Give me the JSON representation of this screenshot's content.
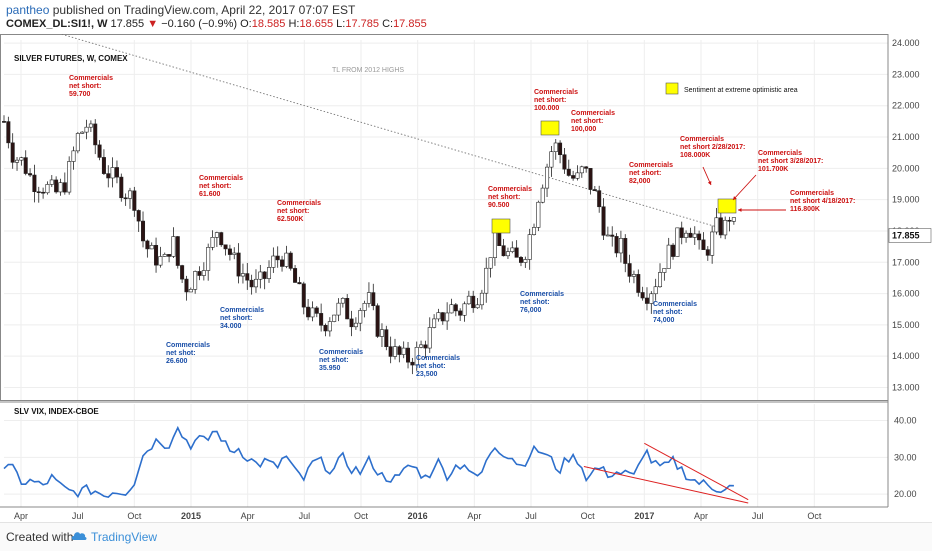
{
  "header": {
    "user": "pantheo",
    "published": "published on TradingView.com, April 22, 2017 07:07 EST",
    "symbol": "COMEX_DL:SI1!, W",
    "last": "17.855",
    "change": "−0.160 (−0.9%)",
    "o_label": "O:",
    "o_value": "18.585",
    "h_label": "H:",
    "h_value": "18.655",
    "l_label": "L:",
    "l_value": "17.785",
    "c_label": "C:",
    "c_value": "17.855"
  },
  "footer": {
    "created_with": "Created with",
    "brand": "TradingView"
  },
  "colors": {
    "up": "#ffffff",
    "down": "#2b1313",
    "wick": "#222222",
    "annot_red": "#cc1111",
    "annot_blue": "#1a4fa8",
    "vix_line": "#2d6fcc",
    "trend_red": "#dd2222",
    "highlight": "#ffff00",
    "grid": "#eeeeee"
  },
  "chart_data": [
    {
      "type": "candlestick",
      "title": "SILVER FUTURES, W, COMEX",
      "ylim": [
        12.6,
        24.1
      ],
      "y_ticks": [
        "13.000",
        "14.000",
        "15.000",
        "16.000",
        "17.000",
        "18.000",
        "19.000",
        "20.000",
        "21.000",
        "22.000",
        "23.000",
        "24.000"
      ],
      "y_tick_values": [
        13,
        14,
        15,
        16,
        17,
        18,
        19,
        20,
        21,
        22,
        23,
        24
      ],
      "last_price_label": "17.855",
      "last_price": 17.855,
      "x_ticks": [
        "Apr",
        "Jul",
        "Oct",
        "2015",
        "Apr",
        "Jul",
        "Oct",
        "2016",
        "Apr",
        "Jul",
        "Oct",
        "2017",
        "Apr",
        "Jul",
        "Oct"
      ],
      "x_tick_months": [
        3,
        6,
        9,
        12,
        15,
        18,
        21,
        24,
        27,
        30,
        33,
        36,
        39,
        42,
        45
      ],
      "x_range_months": [
        2.1,
        48.9
      ],
      "trendline_label": "TL FROM 2012 HIGHS",
      "trendline": [
        [
          0.0,
          25.2
        ],
        [
          40.0,
          18.1
        ]
      ],
      "legend_text": "Sentiment at extreme optimistic area",
      "anchors": [
        [
          2.1,
          21.5
        ],
        [
          2.6,
          20.4
        ],
        [
          3.1,
          20.2
        ],
        [
          3.6,
          19.6
        ],
        [
          4.3,
          19.4
        ],
        [
          4.9,
          19.2
        ],
        [
          5.4,
          19.6
        ],
        [
          6.0,
          21.0
        ],
        [
          6.5,
          21.4
        ],
        [
          6.9,
          20.8
        ],
        [
          7.4,
          20.0
        ],
        [
          8.0,
          19.6
        ],
        [
          8.6,
          19.2
        ],
        [
          9.0,
          19.0
        ],
        [
          9.5,
          17.6
        ],
        [
          10.0,
          17.2
        ],
        [
          10.6,
          17.0
        ],
        [
          11.0,
          17.8
        ],
        [
          11.4,
          16.6
        ],
        [
          11.8,
          16.2
        ],
        [
          12.2,
          16.6
        ],
        [
          12.6,
          17.0
        ],
        [
          13.0,
          17.4
        ],
        [
          13.4,
          18.1
        ],
        [
          13.8,
          17.6
        ],
        [
          14.3,
          17.0
        ],
        [
          14.8,
          16.6
        ],
        [
          15.3,
          16.2
        ],
        [
          15.8,
          16.4
        ],
        [
          16.3,
          17.0
        ],
        [
          16.8,
          17.2
        ],
        [
          17.2,
          16.8
        ],
        [
          17.6,
          16.2
        ],
        [
          18.0,
          15.6
        ],
        [
          18.5,
          15.2
        ],
        [
          19.0,
          15.0
        ],
        [
          19.5,
          15.4
        ],
        [
          20.0,
          15.6
        ],
        [
          20.5,
          15.2
        ],
        [
          21.0,
          15.6
        ],
        [
          21.4,
          15.8
        ],
        [
          21.8,
          15.0
        ],
        [
          22.2,
          14.6
        ],
        [
          22.6,
          14.2
        ],
        [
          23.0,
          14.0
        ],
        [
          23.4,
          13.9
        ],
        [
          23.8,
          14.0
        ],
        [
          24.2,
          14.3
        ],
        [
          24.7,
          14.8
        ],
        [
          25.2,
          15.2
        ],
        [
          25.7,
          15.6
        ],
        [
          26.2,
          15.4
        ],
        [
          26.7,
          15.8
        ],
        [
          27.2,
          16.0
        ],
        [
          27.6,
          16.6
        ],
        [
          28.0,
          17.8
        ],
        [
          28.4,
          17.4
        ],
        [
          28.9,
          17.2
        ],
        [
          29.3,
          17.0
        ],
        [
          29.7,
          17.4
        ],
        [
          30.1,
          18.2
        ],
        [
          30.4,
          19.2
        ],
        [
          30.8,
          20.0
        ],
        [
          31.2,
          20.8
        ],
        [
          31.6,
          20.4
        ],
        [
          32.0,
          19.8
        ],
        [
          32.4,
          19.6
        ],
        [
          32.8,
          20.0
        ],
        [
          33.2,
          19.4
        ],
        [
          33.6,
          18.8
        ],
        [
          34.0,
          17.8
        ],
        [
          34.4,
          17.4
        ],
        [
          34.7,
          17.6
        ],
        [
          35.0,
          17.0
        ],
        [
          35.4,
          16.6
        ],
        [
          35.8,
          16.2
        ],
        [
          36.2,
          16.0
        ],
        [
          36.6,
          16.4
        ],
        [
          37.0,
          17.0
        ],
        [
          37.4,
          17.4
        ],
        [
          37.8,
          17.8
        ],
        [
          38.2,
          18.2
        ],
        [
          38.6,
          18.0
        ],
        [
          39.0,
          17.2
        ],
        [
          39.3,
          17.4
        ],
        [
          39.6,
          17.8
        ],
        [
          39.9,
          18.2
        ],
        [
          40.2,
          18.0
        ],
        [
          40.5,
          18.5
        ],
        [
          40.9,
          17.855
        ]
      ],
      "annotations": [
        {
          "lines": [
            "Commercials",
            "net short:",
            "59.700"
          ],
          "color": "red"
        },
        {
          "lines": [
            "Commercials",
            "net short:",
            "61.600"
          ],
          "color": "red"
        },
        {
          "lines": [
            "Commercials",
            "net short:",
            "62.500K"
          ],
          "color": "red"
        },
        {
          "lines": [
            "Commercials",
            "net short:",
            "90.500"
          ],
          "color": "red"
        },
        {
          "lines": [
            "Commercials",
            "net short:",
            "100.000"
          ],
          "color": "red"
        },
        {
          "lines": [
            "Commercials",
            "net short:",
            "100,000"
          ],
          "color": "red"
        },
        {
          "lines": [
            "Commercials",
            "net short:",
            "82,000"
          ],
          "color": "red"
        },
        {
          "lines": [
            "Commercials",
            "net short 2/28/2017:",
            "108.000K"
          ],
          "color": "red"
        },
        {
          "lines": [
            "Commercials",
            "net short 3/28/2017:",
            "101.700K"
          ],
          "color": "red"
        },
        {
          "lines": [
            "Commercials",
            "net short 4/18/2017:",
            "116.800K"
          ],
          "color": "red"
        },
        {
          "lines": [
            "Commercials",
            "net short:",
            "34.000"
          ],
          "color": "blue"
        },
        {
          "lines": [
            "Commercials",
            "net shot:",
            "26.600"
          ],
          "color": "blue"
        },
        {
          "lines": [
            "Commercials",
            "net shot:",
            "35.950"
          ],
          "color": "blue"
        },
        {
          "lines": [
            "Commercials",
            "net shot:",
            "23,500"
          ],
          "color": "blue"
        },
        {
          "lines": [
            "Commercials",
            "net shot:",
            "76,000"
          ],
          "color": "blue"
        },
        {
          "lines": [
            "Commercials",
            "net shot:",
            "74,000"
          ],
          "color": "blue"
        }
      ]
    },
    {
      "type": "line",
      "title": "SLV VIX, INDEX-CBOE",
      "ylim": [
        16.5,
        44.5
      ],
      "y_ticks": [
        "20.00",
        "30.00",
        "40.00"
      ],
      "y_tick_values": [
        20,
        30,
        40
      ],
      "anchors": [
        [
          2.1,
          27.5
        ],
        [
          2.6,
          26.5
        ],
        [
          3.1,
          23.0
        ],
        [
          3.6,
          23.5
        ],
        [
          4.1,
          22.0
        ],
        [
          4.6,
          24.5
        ],
        [
          5.1,
          22.0
        ],
        [
          5.6,
          20.5
        ],
        [
          6.2,
          20.8
        ],
        [
          6.8,
          21.2
        ],
        [
          7.4,
          19.8
        ],
        [
          8.0,
          21.0
        ],
        [
          8.5,
          20.5
        ],
        [
          9.0,
          23.5
        ],
        [
          9.4,
          30.0
        ],
        [
          9.8,
          33.0
        ],
        [
          10.3,
          35.0
        ],
        [
          10.8,
          33.0
        ],
        [
          11.2,
          38.5
        ],
        [
          11.6,
          35.5
        ],
        [
          12.0,
          33.5
        ],
        [
          12.4,
          35.0
        ],
        [
          12.8,
          34.0
        ],
        [
          13.2,
          37.5
        ],
        [
          13.6,
          35.5
        ],
        [
          14.0,
          31.5
        ],
        [
          14.5,
          32.5
        ],
        [
          15.0,
          30.0
        ],
        [
          15.5,
          28.0
        ],
        [
          16.0,
          29.0
        ],
        [
          16.5,
          27.0
        ],
        [
          17.0,
          30.5
        ],
        [
          17.5,
          26.0
        ],
        [
          18.0,
          24.0
        ],
        [
          18.5,
          29.0
        ],
        [
          19.0,
          28.5
        ],
        [
          19.5,
          26.0
        ],
        [
          20.0,
          30.0
        ],
        [
          20.5,
          27.0
        ],
        [
          21.0,
          26.0
        ],
        [
          21.5,
          29.5
        ],
        [
          22.0,
          25.0
        ],
        [
          22.5,
          24.5
        ],
        [
          23.0,
          24.0
        ],
        [
          23.5,
          28.0
        ],
        [
          24.0,
          26.5
        ],
        [
          24.5,
          24.0
        ],
        [
          25.0,
          29.5
        ],
        [
          25.5,
          25.0
        ],
        [
          26.0,
          27.5
        ],
        [
          26.5,
          28.5
        ],
        [
          27.0,
          24.0
        ],
        [
          27.5,
          26.5
        ],
        [
          28.0,
          33.5
        ],
        [
          28.5,
          31.5
        ],
        [
          29.0,
          30.0
        ],
        [
          29.5,
          27.5
        ],
        [
          30.0,
          31.5
        ],
        [
          30.5,
          32.0
        ],
        [
          31.0,
          29.5
        ],
        [
          31.5,
          26.5
        ],
        [
          32.0,
          30.0
        ],
        [
          32.5,
          29.5
        ],
        [
          33.0,
          24.0
        ],
        [
          33.5,
          27.5
        ],
        [
          34.0,
          25.5
        ],
        [
          34.5,
          26.0
        ],
        [
          35.0,
          25.5
        ],
        [
          35.5,
          24.5
        ],
        [
          36.0,
          32.5
        ],
        [
          36.5,
          28.0
        ],
        [
          37.0,
          27.0
        ],
        [
          37.5,
          29.0
        ],
        [
          38.0,
          26.5
        ],
        [
          38.5,
          24.0
        ],
        [
          39.0,
          23.0
        ],
        [
          39.5,
          22.0
        ],
        [
          40.0,
          21.5
        ],
        [
          40.4,
          22.0
        ],
        [
          40.9,
          21.5
        ]
      ],
      "trend_upper": [
        [
          36.0,
          33.8
        ],
        [
          41.5,
          18.5
        ]
      ],
      "trend_lower": [
        [
          32.8,
          27.5
        ],
        [
          41.5,
          17.6
        ]
      ]
    }
  ]
}
